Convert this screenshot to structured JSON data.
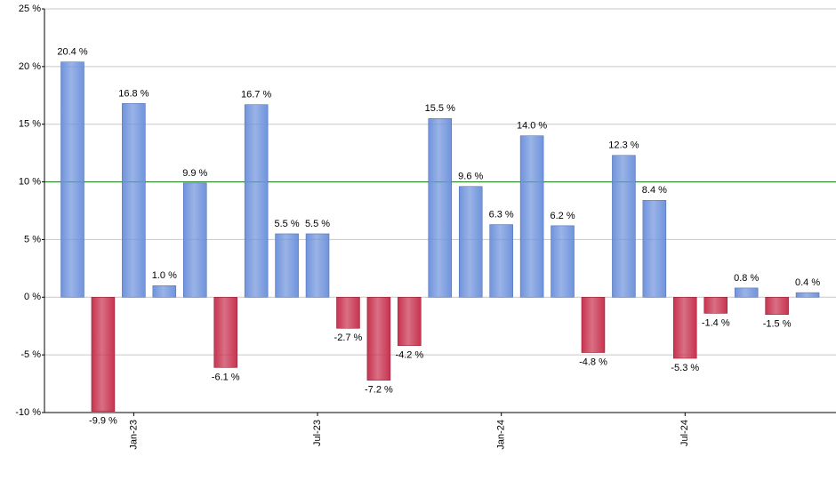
{
  "chart_data": {
    "type": "bar",
    "categories": [
      null,
      null,
      "Jan-23",
      null,
      null,
      null,
      null,
      null,
      "Jul-23",
      null,
      null,
      null,
      null,
      null,
      "Jan-24",
      null,
      null,
      null,
      null,
      null,
      "Jul-24",
      null,
      null,
      null,
      null
    ],
    "values": [
      20.4,
      -9.9,
      16.8,
      1.0,
      9.9,
      -6.1,
      16.7,
      5.5,
      5.5,
      -2.7,
      -7.2,
      -4.2,
      15.5,
      9.6,
      6.3,
      14.0,
      6.2,
      -4.8,
      12.3,
      8.4,
      -5.3,
      -1.4,
      0.8,
      -1.5,
      0.4
    ],
    "value_labels": [
      "20.4 %",
      "-9.9 %",
      "16.8 %",
      "1.0 %",
      "9.9 %",
      "-6.1 %",
      "16.7 %",
      "5.5 %",
      "5.5 %",
      "-2.7 %",
      "-7.2 %",
      "-4.2 %",
      "15.5 %",
      "9.6 %",
      "6.3 %",
      "14.0 %",
      "6.2 %",
      "-4.8 %",
      "12.3 %",
      "8.4 %",
      "-5.3 %",
      "-1.4 %",
      "0.8 %",
      "-1.5 %",
      "0.4 %"
    ],
    "positive_color": "#6f93dc",
    "negative_color": "#c8324f",
    "reference_line": 10,
    "reference_color": "#1a7a1a",
    "ylim": [
      -10,
      25
    ],
    "yticks": [
      {
        "value": -10,
        "label": "-10 %"
      },
      {
        "value": -5,
        "label": "-5 %"
      },
      {
        "value": 0,
        "label": "0 %"
      },
      {
        "value": 5,
        "label": "5 %"
      },
      {
        "value": 10,
        "label": "10 %"
      },
      {
        "value": 15,
        "label": "15 %"
      },
      {
        "value": 20,
        "label": "20 %"
      },
      {
        "value": 25,
        "label": "25 %"
      }
    ],
    "grid": true
  }
}
